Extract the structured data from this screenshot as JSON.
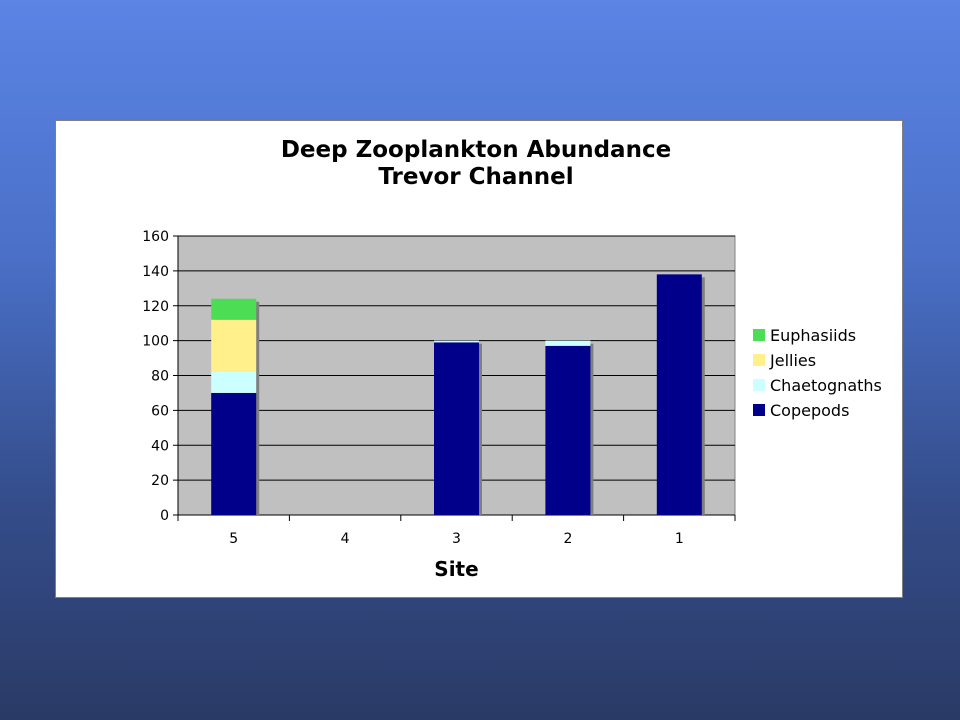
{
  "chart_data": {
    "type": "bar",
    "stacked": true,
    "title": [
      "Deep Zooplankton Abundance",
      "Trevor Channel"
    ],
    "xlabel": "Site",
    "ylabel": "",
    "categories": [
      "5",
      "4",
      "3",
      "2",
      "1"
    ],
    "ylim": [
      0,
      160
    ],
    "yticks": [
      0,
      20,
      40,
      60,
      80,
      100,
      120,
      140,
      160
    ],
    "grid": true,
    "legend": "right",
    "series": [
      {
        "name": "Copepods",
        "color": "#00008b",
        "values": [
          70,
          0,
          99,
          97,
          138
        ]
      },
      {
        "name": "Chaetognaths",
        "color": "#ccffff",
        "values": [
          12,
          0,
          1,
          3,
          0
        ]
      },
      {
        "name": "Jellies",
        "color": "#fff08c",
        "values": [
          30,
          0,
          0,
          0,
          0
        ]
      },
      {
        "name": "Euphasiids",
        "color": "#4ddd55",
        "values": [
          12,
          0,
          0,
          0,
          0
        ]
      }
    ],
    "plot_background": "#c0c0c0"
  }
}
